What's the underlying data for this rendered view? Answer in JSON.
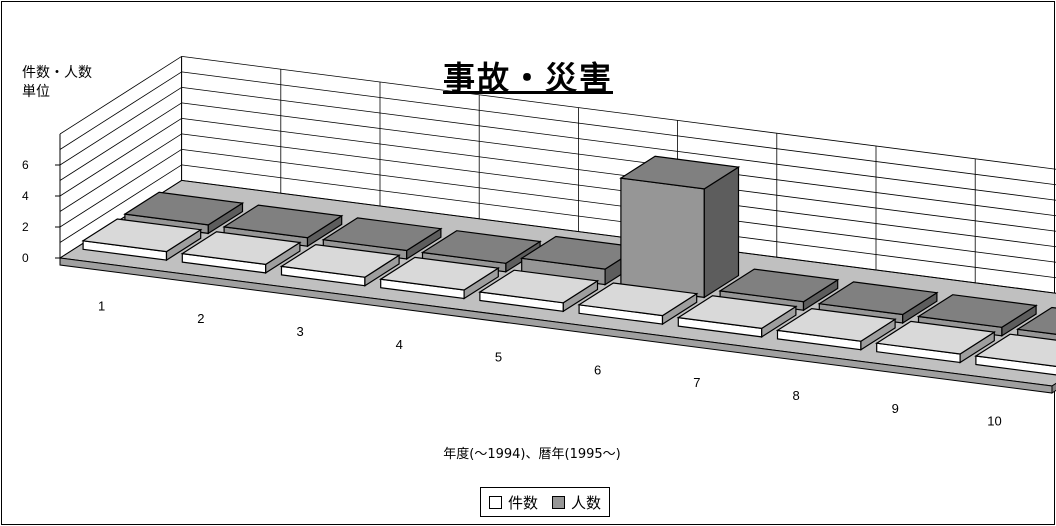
{
  "chart_data": {
    "type": "bar",
    "title": "事故・災害",
    "ylabel": [
      "件数・人数",
      "単位"
    ],
    "xlabel": "年度(～1994)、暦年(1995～)",
    "categories": [
      "1",
      "2",
      "3",
      "4",
      "5",
      "6",
      "7",
      "8",
      "9",
      "10"
    ],
    "yticks": [
      0,
      2,
      4,
      6
    ],
    "ylim": [
      0,
      8
    ],
    "series": [
      {
        "name": "件数",
        "color": "#ffffff",
        "values": [
          0,
          0,
          0,
          0,
          0,
          0,
          0,
          0,
          0,
          0
        ]
      },
      {
        "name": "人数",
        "color": "#969696",
        "values": [
          0,
          0,
          0,
          0,
          1,
          7,
          0,
          0,
          0,
          0
        ]
      }
    ],
    "legend_position": "bottom",
    "grid": true
  }
}
